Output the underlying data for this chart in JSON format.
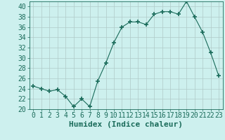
{
  "x": [
    0,
    1,
    2,
    3,
    4,
    5,
    6,
    7,
    8,
    9,
    10,
    11,
    12,
    13,
    14,
    15,
    16,
    17,
    18,
    19,
    20,
    21,
    22,
    23
  ],
  "y": [
    24.5,
    24.0,
    23.5,
    23.8,
    22.5,
    20.5,
    22.0,
    20.5,
    25.5,
    29.0,
    33.0,
    36.0,
    37.0,
    37.0,
    36.5,
    38.5,
    39.0,
    39.0,
    38.5,
    41.0,
    38.0,
    35.0,
    31.0,
    26.5
  ],
  "line_color": "#1a6b5a",
  "marker": "+",
  "marker_size": 5,
  "bg_color": "#cdf0ee",
  "grid_color": "#b0cac8",
  "xlabel": "Humidex (Indice chaleur)",
  "ylim": [
    20,
    41
  ],
  "yticks": [
    20,
    22,
    24,
    26,
    28,
    30,
    32,
    34,
    36,
    38,
    40
  ],
  "xticks": [
    0,
    1,
    2,
    3,
    4,
    5,
    6,
    7,
    8,
    9,
    10,
    11,
    12,
    13,
    14,
    15,
    16,
    17,
    18,
    19,
    20,
    21,
    22,
    23
  ],
  "font_color": "#1a6b5a",
  "tick_fontsize": 7,
  "xlabel_fontsize": 8
}
